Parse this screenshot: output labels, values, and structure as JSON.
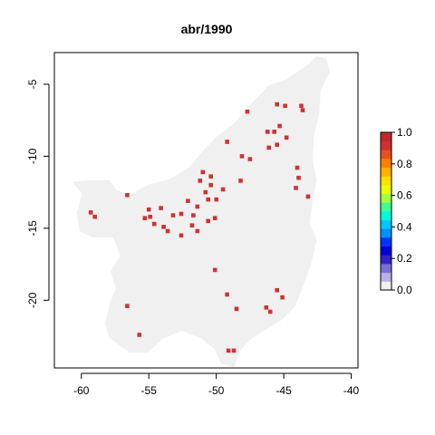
{
  "title": "abr/1990",
  "chart_data": {
    "type": "heatmap",
    "title": "abr/1990",
    "xlim": [
      -62,
      -39.5
    ],
    "ylim": [
      -24.7,
      -2.8
    ],
    "x_ticks": [
      -60,
      -55,
      -50,
      -45,
      -40
    ],
    "x_tick_labels": [
      "-60",
      "-55",
      "-50",
      "-45",
      "-40"
    ],
    "y_ticks": [
      -5,
      -10,
      -15,
      -20
    ],
    "y_tick_labels": [
      "-5",
      "-10",
      "-15",
      "-20"
    ],
    "grid": false,
    "legend_placement": "right",
    "colorbar": {
      "min": 0.0,
      "max": 1.0,
      "ticks": [
        0.0,
        0.2,
        0.4,
        0.6,
        0.8,
        1.0
      ],
      "tick_labels": [
        "0.0",
        "0.2",
        "0.4",
        "0.6",
        "0.8",
        "1.0"
      ],
      "palette": [
        "#f0f0f0",
        "#b9b0e6",
        "#7a6ed8",
        "#3322c8",
        "#0000d9",
        "#0033ff",
        "#0090ff",
        "#00c8ff",
        "#00ffd8",
        "#40ff90",
        "#a0ff40",
        "#e8ff00",
        "#ffe000",
        "#ffb000",
        "#ff8000",
        "#e85020",
        "#d03030",
        "#c02828"
      ]
    },
    "background_value": 0.0,
    "background_color": "#f0f0f0",
    "region_outline_lonlat": [
      [
        -59.3,
        -11.7
      ],
      [
        -57.9,
        -11.7
      ],
      [
        -57.4,
        -12.4
      ],
      [
        -56.4,
        -12.7
      ],
      [
        -55.0,
        -12.0
      ],
      [
        -53.4,
        -11.6
      ],
      [
        -52.0,
        -10.8
      ],
      [
        -51.2,
        -9.9
      ],
      [
        -50.0,
        -8.7
      ],
      [
        -48.6,
        -7.7
      ],
      [
        -47.4,
        -6.4
      ],
      [
        -46.1,
        -5.1
      ],
      [
        -44.8,
        -4.7
      ],
      [
        -43.9,
        -4.1
      ],
      [
        -43.2,
        -3.7
      ],
      [
        -42.6,
        -3.1
      ],
      [
        -41.9,
        -3.2
      ],
      [
        -41.6,
        -4.1
      ],
      [
        -42.3,
        -5.4
      ],
      [
        -42.4,
        -7.0
      ],
      [
        -42.8,
        -8.5
      ],
      [
        -42.9,
        -10.2
      ],
      [
        -42.6,
        -11.7
      ],
      [
        -42.9,
        -13.2
      ],
      [
        -43.1,
        -14.6
      ],
      [
        -42.6,
        -15.8
      ],
      [
        -43.0,
        -17.4
      ],
      [
        -43.5,
        -18.8
      ],
      [
        -44.2,
        -20.4
      ],
      [
        -45.1,
        -21.3
      ],
      [
        -46.3,
        -22.0
      ],
      [
        -47.4,
        -22.6
      ],
      [
        -48.3,
        -23.5
      ],
      [
        -48.7,
        -24.6
      ],
      [
        -49.6,
        -24.4
      ],
      [
        -50.1,
        -23.4
      ],
      [
        -51.1,
        -22.6
      ],
      [
        -52.6,
        -22.1
      ],
      [
        -53.9,
        -22.6
      ],
      [
        -55.1,
        -23.6
      ],
      [
        -56.4,
        -23.6
      ],
      [
        -57.9,
        -22.6
      ],
      [
        -58.2,
        -21.6
      ],
      [
        -57.9,
        -20.3
      ],
      [
        -57.4,
        -19.2
      ],
      [
        -57.8,
        -18.0
      ],
      [
        -57.1,
        -16.9
      ],
      [
        -57.6,
        -15.6
      ],
      [
        -59.1,
        -15.6
      ],
      [
        -60.1,
        -15.2
      ],
      [
        -60.3,
        -13.9
      ],
      [
        -59.9,
        -12.6
      ],
      [
        -60.6,
        -11.8
      ]
    ],
    "value_1_cells_lonlat": [
      [
        -45.5,
        -6.4
      ],
      [
        -44.9,
        -6.5
      ],
      [
        -43.7,
        -6.5
      ],
      [
        -43.6,
        -6.8
      ],
      [
        -47.7,
        -6.9
      ],
      [
        -46.2,
        -8.3
      ],
      [
        -45.3,
        -7.9
      ],
      [
        -45.7,
        -8.3
      ],
      [
        -44.8,
        -8.7
      ],
      [
        -49.2,
        -9.0
      ],
      [
        -45.5,
        -9.2
      ],
      [
        -46.1,
        -9.4
      ],
      [
        -48.1,
        -10.0
      ],
      [
        -47.5,
        -10.2
      ],
      [
        -44.0,
        -10.8
      ],
      [
        -43.9,
        -11.5
      ],
      [
        -44.1,
        -12.2
      ],
      [
        -50.4,
        -11.4
      ],
      [
        -51.0,
        -11.1
      ],
      [
        -51.2,
        -11.7
      ],
      [
        -48.2,
        -11.7
      ],
      [
        -50.4,
        -12.0
      ],
      [
        -49.5,
        -12.3
      ],
      [
        -50.8,
        -12.5
      ],
      [
        -56.6,
        -12.7
      ],
      [
        -43.2,
        -12.8
      ],
      [
        -50.0,
        -13.0
      ],
      [
        -50.6,
        -13.0
      ],
      [
        -52.1,
        -13.1
      ],
      [
        -51.4,
        -13.5
      ],
      [
        -54.1,
        -13.6
      ],
      [
        -55.0,
        -13.7
      ],
      [
        -52.6,
        -14.0
      ],
      [
        -53.2,
        -14.1
      ],
      [
        -51.7,
        -14.1
      ],
      [
        -54.9,
        -14.2
      ],
      [
        -55.3,
        -14.3
      ],
      [
        -54.6,
        -14.7
      ],
      [
        -51.8,
        -14.8
      ],
      [
        -50.6,
        -14.5
      ],
      [
        -59.3,
        -13.9
      ],
      [
        -59.0,
        -14.2
      ],
      [
        -53.9,
        -14.9
      ],
      [
        -53.6,
        -15.2
      ],
      [
        -51.4,
        -15.2
      ],
      [
        -52.6,
        -15.5
      ],
      [
        -50.1,
        -14.3
      ],
      [
        -50.1,
        -17.9
      ],
      [
        -48.5,
        -20.6
      ],
      [
        -49.2,
        -19.6
      ],
      [
        -46.3,
        -20.5
      ],
      [
        -45.5,
        -19.3
      ],
      [
        -45.1,
        -19.8
      ],
      [
        -46.0,
        -20.8
      ],
      [
        -56.6,
        -20.4
      ],
      [
        -55.7,
        -22.4
      ],
      [
        -48.7,
        -23.5
      ],
      [
        -49.1,
        -23.5
      ]
    ],
    "value_1_color": "#cd3333"
  }
}
